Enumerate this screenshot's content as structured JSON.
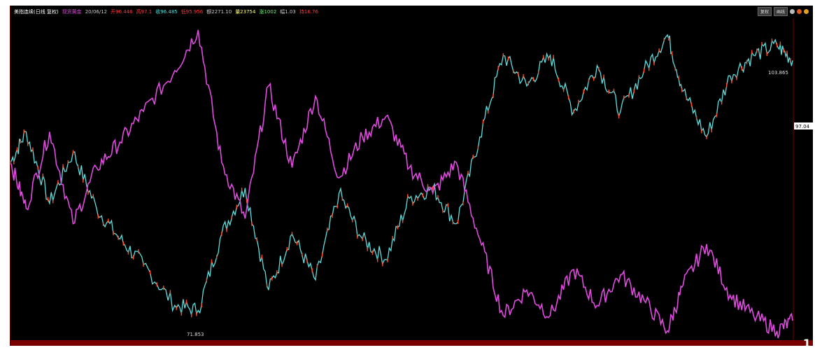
{
  "header": {
    "instrument": "美指连续(日线 复权)",
    "indicator": "现货黄金",
    "date": "20/06/12",
    "open": "开96.446",
    "high": "高97.1",
    "close": "收96.485",
    "low": "低95.956",
    "amount": "额2271.10",
    "volume": "量23754",
    "change": "涨1002",
    "range": "幅1.03",
    "extra": "持16.76",
    "btn_1": "复权",
    "btn_2": "画线",
    "colors": {
      "instrument": "#ffffff",
      "indicator": "#e24ae2",
      "date": "#c8c8c8",
      "open": "#ff3a3a",
      "high": "#ff3a3a",
      "close": "#4ae0e0",
      "low": "#ff3a3a",
      "amount": "#cccccc",
      "volume": "#ffff66",
      "change": "#66ff66",
      "range": "#cccccc",
      "extra": "#ff3a3a"
    }
  },
  "chart_data": {
    "type": "line",
    "annotations": {
      "high_label": "103.865",
      "low_label": "71.853",
      "last_price": "97.04"
    },
    "series": [
      {
        "color": "#5ee0e0",
        "x": [
          0,
          0.02,
          0.05,
          0.08,
          0.11,
          0.14,
          0.17,
          0.21,
          0.24,
          0.27,
          0.3,
          0.33,
          0.36,
          0.39,
          0.42,
          0.45,
          0.48,
          0.51,
          0.54,
          0.57,
          0.6,
          0.63,
          0.66,
          0.69,
          0.72,
          0.75,
          0.78,
          0.81,
          0.84,
          0.86,
          0.89,
          0.92,
          0.95,
          0.98,
          1
        ],
        "values": [
          87.0,
          90.0,
          83.0,
          88.0,
          82.5,
          79.5,
          77.0,
          73.0,
          72.5,
          80.0,
          84.5,
          74.5,
          80.0,
          75.5,
          84.0,
          79.5,
          77.5,
          83.5,
          84.5,
          81.0,
          89.5,
          97.5,
          94.5,
          97.5,
          92.0,
          96.5,
          92.0,
          96.0,
          99.5,
          94.0,
          89.5,
          95.5,
          97.5,
          98.5,
          97.0
        ]
      },
      {
        "color": "#e24ae2",
        "x": [
          0,
          0.02,
          0.05,
          0.08,
          0.11,
          0.14,
          0.17,
          0.21,
          0.24,
          0.27,
          0.3,
          0.33,
          0.36,
          0.39,
          0.42,
          0.45,
          0.48,
          0.51,
          0.54,
          0.57,
          0.6,
          0.63,
          0.66,
          0.69,
          0.72,
          0.75,
          0.78,
          0.81,
          0.84,
          0.86,
          0.89,
          0.92,
          0.95,
          0.98,
          1
        ],
        "values": [
          87.0,
          82.5,
          90.0,
          81.0,
          86.5,
          89.0,
          92.0,
          96.0,
          100.0,
          87.0,
          81.5,
          94.5,
          86.5,
          93.5,
          85.5,
          89.5,
          91.5,
          86.5,
          84.0,
          87.0,
          79.5,
          72.0,
          74.5,
          72.0,
          76.5,
          73.0,
          76.0,
          73.5,
          70.5,
          75.0,
          79.0,
          74.0,
          72.0,
          70.5,
          71.5
        ]
      }
    ]
  }
}
